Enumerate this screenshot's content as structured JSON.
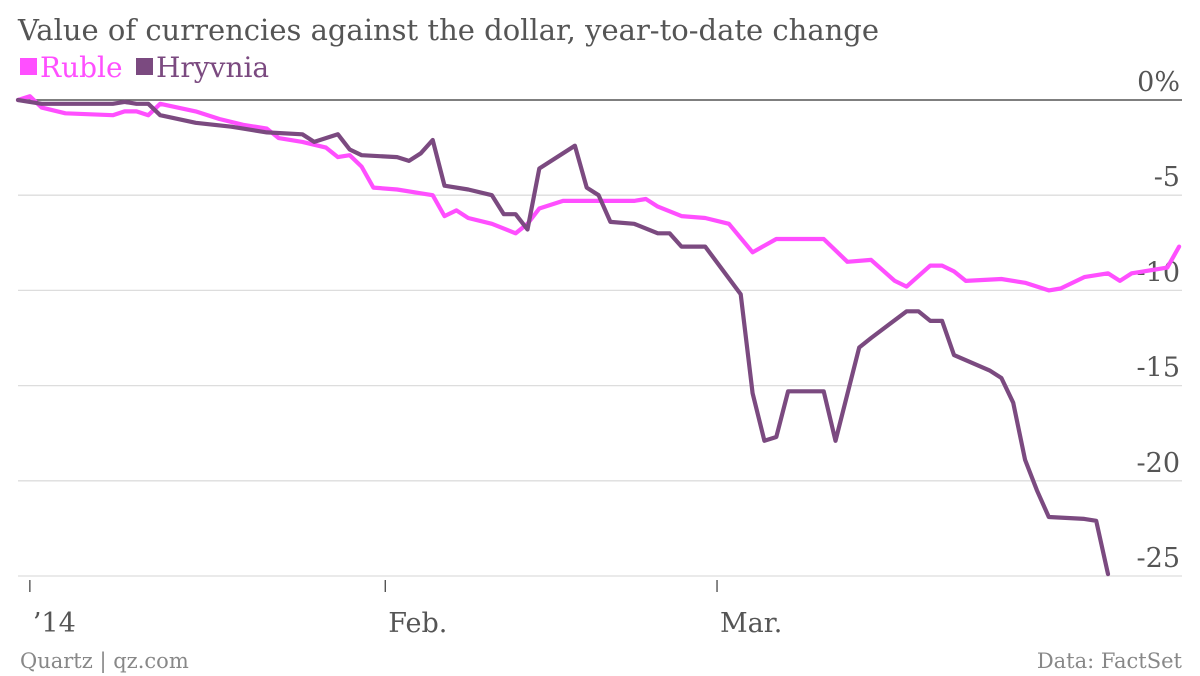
{
  "chart_data": {
    "type": "line",
    "title": "Value of currencies against the dollar, year-to-date change",
    "xlabel": "",
    "ylabel": "",
    "ylim": [
      -25,
      0
    ],
    "y_ticks": [
      "0%",
      "-5",
      "-10",
      "-15",
      "-20",
      "-25"
    ],
    "x_ticks": [
      "’14",
      "Feb.",
      "Mar."
    ],
    "grid": true,
    "legend_position": "top-left",
    "colors": {
      "Ruble": "#ff4fff",
      "Hryvnia": "#7b4a80"
    },
    "series": [
      {
        "name": "Ruble",
        "color": "#ff4fff",
        "points": [
          [
            "2014-01-01",
            0.0
          ],
          [
            "2014-01-02",
            0.2
          ],
          [
            "2014-01-03",
            -0.4
          ],
          [
            "2014-01-05",
            -0.7
          ],
          [
            "2014-01-09",
            -0.8
          ],
          [
            "2014-01-10",
            -0.6
          ],
          [
            "2014-01-11",
            -0.6
          ],
          [
            "2014-01-12",
            -0.8
          ],
          [
            "2014-01-13",
            -0.2
          ],
          [
            "2014-01-16",
            -0.6
          ],
          [
            "2014-01-18",
            -1.0
          ],
          [
            "2014-01-20",
            -1.3
          ],
          [
            "2014-01-22",
            -1.5
          ],
          [
            "2014-01-23",
            -2.0
          ],
          [
            "2014-01-25",
            -2.2
          ],
          [
            "2014-01-27",
            -2.5
          ],
          [
            "2014-01-28",
            -3.0
          ],
          [
            "2014-01-29",
            -2.9
          ],
          [
            "2014-01-30",
            -3.5
          ],
          [
            "2014-01-31",
            -4.6
          ],
          [
            "2014-02-02",
            -4.7
          ],
          [
            "2014-02-04",
            -4.9
          ],
          [
            "2014-02-05",
            -5.0
          ],
          [
            "2014-02-06",
            -6.1
          ],
          [
            "2014-02-07",
            -5.8
          ],
          [
            "2014-02-08",
            -6.2
          ],
          [
            "2014-02-10",
            -6.5
          ],
          [
            "2014-02-12",
            -7.0
          ],
          [
            "2014-02-13",
            -6.5
          ],
          [
            "2014-02-14",
            -5.7
          ],
          [
            "2014-02-16",
            -5.3
          ],
          [
            "2014-02-18",
            -5.3
          ],
          [
            "2014-02-20",
            -5.3
          ],
          [
            "2014-02-22",
            -5.3
          ],
          [
            "2014-02-23",
            -5.2
          ],
          [
            "2014-02-24",
            -5.6
          ],
          [
            "2014-02-26",
            -6.1
          ],
          [
            "2014-02-28",
            -6.2
          ],
          [
            "2014-03-02",
            -6.5
          ],
          [
            "2014-03-04",
            -8.0
          ],
          [
            "2014-03-06",
            -7.3
          ],
          [
            "2014-03-10",
            -7.3
          ],
          [
            "2014-03-12",
            -8.5
          ],
          [
            "2014-03-14",
            -8.4
          ],
          [
            "2014-03-16",
            -9.5
          ],
          [
            "2014-03-17",
            -9.8
          ],
          [
            "2014-03-19",
            -8.7
          ],
          [
            "2014-03-20",
            -8.7
          ],
          [
            "2014-03-21",
            -9.0
          ],
          [
            "2014-03-22",
            -9.5
          ],
          [
            "2014-03-25",
            -9.4
          ],
          [
            "2014-03-27",
            -9.6
          ],
          [
            "2014-03-29",
            -10.0
          ],
          [
            "2014-03-30",
            -9.9
          ],
          [
            "2014-04-01",
            -9.3
          ],
          [
            "2014-04-03",
            -9.1
          ],
          [
            "2014-04-04",
            -9.5
          ],
          [
            "2014-04-05",
            -9.1
          ],
          [
            "2014-04-08",
            -8.8
          ],
          [
            "2014-04-09",
            -7.7
          ]
        ]
      },
      {
        "name": "Hryvnia",
        "color": "#7b4a80",
        "points": [
          [
            "2014-01-01",
            0.0
          ],
          [
            "2014-01-02",
            -0.1
          ],
          [
            "2014-01-03",
            -0.2
          ],
          [
            "2014-01-06",
            -0.2
          ],
          [
            "2014-01-09",
            -0.2
          ],
          [
            "2014-01-10",
            -0.1
          ],
          [
            "2014-01-11",
            -0.2
          ],
          [
            "2014-01-12",
            -0.2
          ],
          [
            "2014-01-13",
            -0.8
          ],
          [
            "2014-01-16",
            -1.2
          ],
          [
            "2014-01-19",
            -1.4
          ],
          [
            "2014-01-20",
            -1.5
          ],
          [
            "2014-01-22",
            -1.7
          ],
          [
            "2014-01-25",
            -1.8
          ],
          [
            "2014-01-26",
            -2.2
          ],
          [
            "2014-01-28",
            -1.8
          ],
          [
            "2014-01-29",
            -2.6
          ],
          [
            "2014-01-30",
            -2.9
          ],
          [
            "2014-02-02",
            -3.0
          ],
          [
            "2014-02-03",
            -3.2
          ],
          [
            "2014-02-04",
            -2.8
          ],
          [
            "2014-02-05",
            -2.1
          ],
          [
            "2014-02-06",
            -4.5
          ],
          [
            "2014-02-08",
            -4.7
          ],
          [
            "2014-02-10",
            -5.0
          ],
          [
            "2014-02-11",
            -6.0
          ],
          [
            "2014-02-12",
            -6.0
          ],
          [
            "2014-02-13",
            -6.8
          ],
          [
            "2014-02-14",
            -3.6
          ],
          [
            "2014-02-17",
            -2.4
          ],
          [
            "2014-02-18",
            -4.6
          ],
          [
            "2014-02-19",
            -5.0
          ],
          [
            "2014-02-20",
            -6.4
          ],
          [
            "2014-02-22",
            -6.5
          ],
          [
            "2014-02-24",
            -7.0
          ],
          [
            "2014-02-25",
            -7.0
          ],
          [
            "2014-02-26",
            -7.7
          ],
          [
            "2014-02-28",
            -7.7
          ],
          [
            "2014-03-03",
            -10.2
          ],
          [
            "2014-03-04",
            -15.4
          ],
          [
            "2014-03-05",
            -17.9
          ],
          [
            "2014-03-06",
            -17.7
          ],
          [
            "2014-03-07",
            -15.3
          ],
          [
            "2014-03-10",
            -15.3
          ],
          [
            "2014-03-11",
            -17.9
          ],
          [
            "2014-03-13",
            -13.0
          ],
          [
            "2014-03-14",
            -12.5
          ],
          [
            "2014-03-17",
            -11.1
          ],
          [
            "2014-03-18",
            -11.1
          ],
          [
            "2014-03-19",
            -11.6
          ],
          [
            "2014-03-20",
            -11.6
          ],
          [
            "2014-03-21",
            -13.4
          ],
          [
            "2014-03-24",
            -14.2
          ],
          [
            "2014-03-25",
            -14.6
          ],
          [
            "2014-03-26",
            -15.9
          ],
          [
            "2014-03-27",
            -18.9
          ],
          [
            "2014-03-28",
            -20.5
          ],
          [
            "2014-03-29",
            -21.9
          ],
          [
            "2014-04-01",
            -22.0
          ],
          [
            "2014-04-02",
            -22.1
          ],
          [
            "2014-04-03",
            -24.9
          ]
        ]
      }
    ],
    "source": "Data: FactSet",
    "credit": "Quartz | qz.com"
  }
}
